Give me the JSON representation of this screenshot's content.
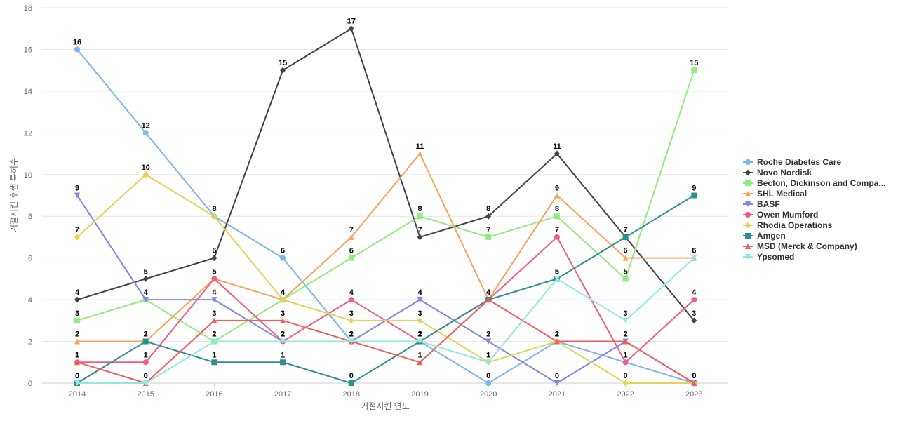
{
  "chart_data": {
    "type": "line",
    "title": "",
    "xlabel": "거절시킨 연도",
    "ylabel": "거절시킨 후행 특허수",
    "ylim": [
      0,
      18
    ],
    "yticks": [
      0,
      2,
      4,
      6,
      8,
      10,
      12,
      14,
      16,
      18
    ],
    "grid": true,
    "legend_position": "right",
    "x": [
      "2014",
      "2015",
      "2016",
      "2017",
      "2018",
      "2019",
      "2020",
      "2021",
      "2022",
      "2023"
    ],
    "series": [
      {
        "name": "Roche Diabetes Care",
        "color": "#7cb5ec",
        "marker": "circle",
        "values": [
          16,
          12,
          8,
          6,
          2,
          2,
          0,
          2,
          1,
          0
        ]
      },
      {
        "name": "Novo Nordisk",
        "color": "#434348",
        "marker": "diamond",
        "values": [
          4,
          5,
          6,
          15,
          17,
          7,
          8,
          11,
          7,
          3
        ]
      },
      {
        "name": "Becton, Dickinson and Compa...",
        "color": "#90ed7d",
        "marker": "square",
        "values": [
          3,
          4,
          2,
          4,
          6,
          8,
          7,
          8,
          5,
          15
        ]
      },
      {
        "name": "SHL Medical",
        "color": "#f7a35c",
        "marker": "triangle",
        "values": [
          2,
          2,
          5,
          4,
          7,
          11,
          4,
          9,
          6,
          6
        ]
      },
      {
        "name": "BASF",
        "color": "#8085e9",
        "marker": "triangle-down",
        "values": [
          9,
          4,
          4,
          2,
          2,
          4,
          2,
          0,
          2,
          0
        ]
      },
      {
        "name": "Owen Mumford",
        "color": "#f15c80",
        "marker": "circle",
        "values": [
          1,
          1,
          5,
          2,
          4,
          2,
          4,
          7,
          1,
          4
        ]
      },
      {
        "name": "Rhodia Operations",
        "color": "#e4d354",
        "marker": "diamond",
        "values": [
          7,
          10,
          8,
          4,
          3,
          3,
          1,
          2,
          0,
          0
        ]
      },
      {
        "name": "Amgen",
        "color": "#2b908f",
        "marker": "square",
        "values": [
          0,
          2,
          1,
          1,
          0,
          2,
          4,
          5,
          7,
          9
        ]
      },
      {
        "name": "MSD (Merck & Company)",
        "color": "#f45b5b",
        "marker": "triangle",
        "values": [
          1,
          0,
          3,
          3,
          2,
          1,
          4,
          2,
          2,
          0
        ]
      },
      {
        "name": "Ypsomed",
        "color": "#91e8e1",
        "marker": "triangle-down",
        "values": [
          0,
          0,
          2,
          2,
          2,
          2,
          1,
          5,
          3,
          6
        ]
      }
    ]
  }
}
